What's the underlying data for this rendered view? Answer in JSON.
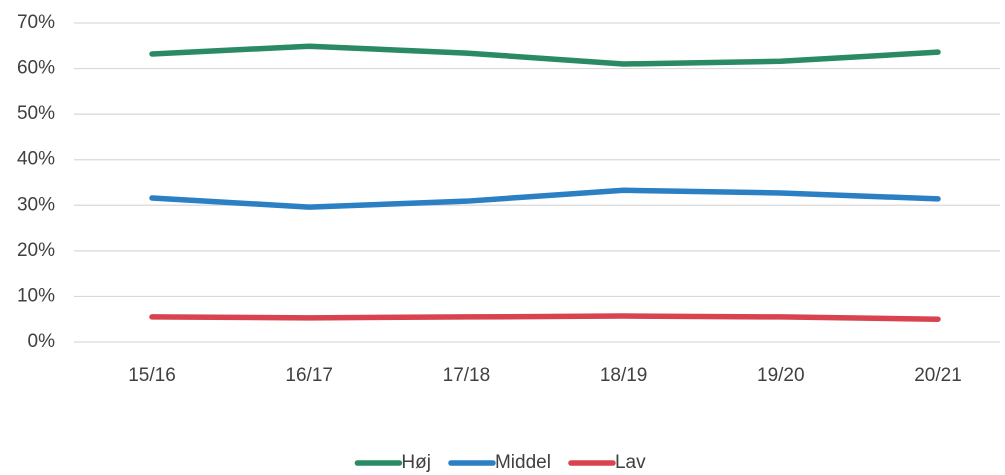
{
  "chart_data": {
    "type": "line",
    "categories": [
      "15/16",
      "16/17",
      "17/18",
      "18/19",
      "19/20",
      "20/21"
    ],
    "series": [
      {
        "name": "Høj",
        "color": "#2a8a63",
        "values": [
          63.2,
          64.9,
          63.4,
          61.0,
          61.6,
          63.6
        ]
      },
      {
        "name": "Middel",
        "color": "#2b7fc3",
        "values": [
          31.6,
          29.6,
          30.9,
          33.3,
          32.7,
          31.4
        ]
      },
      {
        "name": "Lav",
        "color": "#d9434f",
        "values": [
          5.5,
          5.3,
          5.5,
          5.7,
          5.5,
          5.0
        ]
      }
    ],
    "ylim": [
      0,
      70
    ],
    "yticks": [
      {
        "value": 0,
        "label": "0%"
      },
      {
        "value": 10,
        "label": "10%"
      },
      {
        "value": 20,
        "label": "20%"
      },
      {
        "value": 30,
        "label": "30%"
      },
      {
        "value": 40,
        "label": "40%"
      },
      {
        "value": 50,
        "label": "50%"
      },
      {
        "value": 60,
        "label": "60%"
      },
      {
        "value": 70,
        "label": "70%"
      }
    ],
    "grid": true,
    "legend": "bottom"
  }
}
